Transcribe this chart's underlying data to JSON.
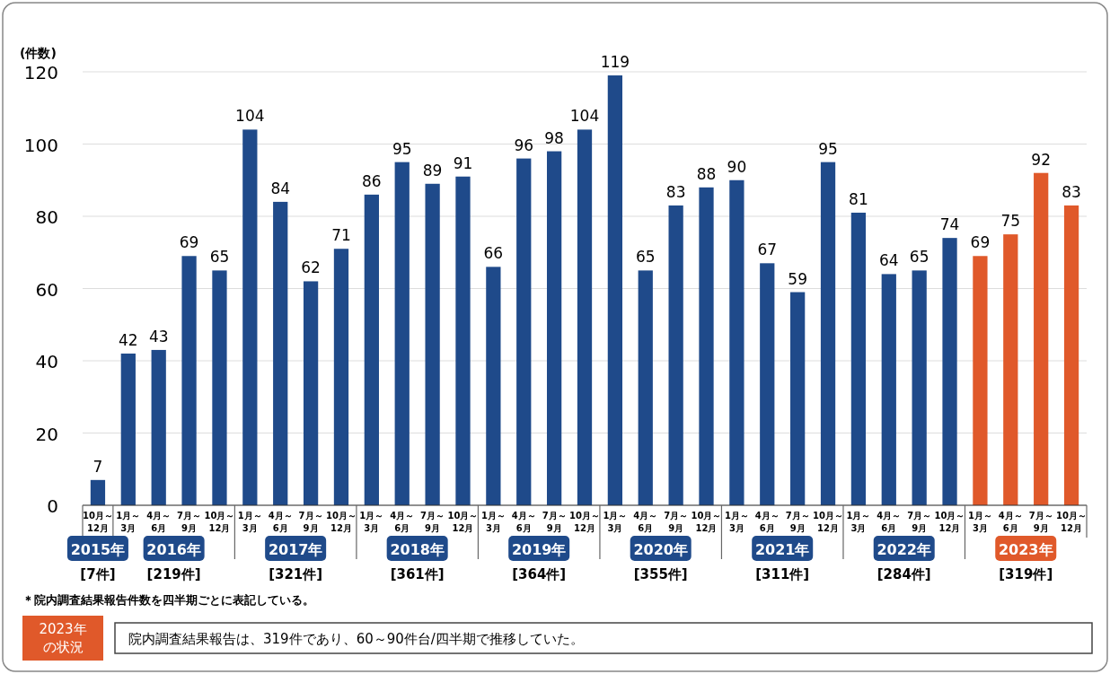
{
  "chart_data": {
    "type": "bar",
    "ylabel": "(件数)",
    "categories": [
      "10月～12月",
      "1月～3月",
      "4月～6月",
      "7月～9月",
      "10月～12月",
      "1月～3月",
      "4月～6月",
      "7月～9月",
      "10月～12月",
      "1月～3月",
      "4月～6月",
      "7月～9月",
      "10月～12月",
      "1月～3月",
      "4月～6月",
      "7月～9月",
      "10月～12月",
      "1月～3月",
      "4月～6月",
      "7月～9月",
      "10月～12月",
      "1月～3月",
      "4月～6月",
      "7月～9月",
      "10月～12月",
      "1月～3月",
      "4月～6月",
      "7月～9月",
      "10月～12月",
      "1月～3月",
      "4月～6月",
      "7月～9月",
      "10月～12月"
    ],
    "values": [
      7,
      42,
      43,
      69,
      65,
      104,
      84,
      62,
      71,
      86,
      95,
      89,
      91,
      66,
      96,
      98,
      104,
      119,
      65,
      83,
      88,
      90,
      67,
      59,
      95,
      81,
      64,
      65,
      74,
      69,
      75,
      92,
      83
    ],
    "colors": [
      "#1f4a8a",
      "#1f4a8a",
      "#1f4a8a",
      "#1f4a8a",
      "#1f4a8a",
      "#1f4a8a",
      "#1f4a8a",
      "#1f4a8a",
      "#1f4a8a",
      "#1f4a8a",
      "#1f4a8a",
      "#1f4a8a",
      "#1f4a8a",
      "#1f4a8a",
      "#1f4a8a",
      "#1f4a8a",
      "#1f4a8a",
      "#1f4a8a",
      "#1f4a8a",
      "#1f4a8a",
      "#1f4a8a",
      "#1f4a8a",
      "#1f4a8a",
      "#1f4a8a",
      "#1f4a8a",
      "#1f4a8a",
      "#1f4a8a",
      "#1f4a8a",
      "#1f4a8a",
      "#e0592a",
      "#e0592a",
      "#e0592a",
      "#e0592a"
    ],
    "ylim": [
      0,
      120
    ],
    "yticks": [
      0,
      20,
      40,
      60,
      80,
      100,
      120
    ],
    "grid": "y",
    "data_labels": true,
    "annotations": [
      "2015年",
      "2016年",
      "2017年",
      "2018年",
      "2019年",
      "2020年",
      "2021年",
      "2022年",
      "2023年",
      "[7件]",
      "[219件]",
      "[321件]",
      "[361件]",
      "[364件]",
      "[355件]",
      "[311件]",
      "[284件]",
      "[319件]",
      "＊院内調査結果報告件数を四半期ごとに表記している。",
      "2023年",
      "の状況",
      "院内調査結果報告は、319件であり、60～90件台/四半期で推移していた。"
    ]
  }
}
